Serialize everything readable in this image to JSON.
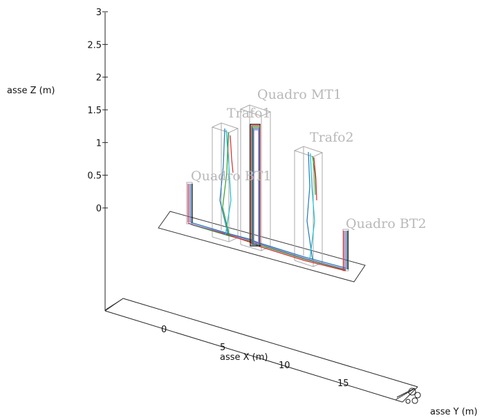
{
  "chart_data": {
    "type": "3d-line",
    "zlabel": "asse Z (m)",
    "xlabel": "asse X (m)",
    "ylabel": "asse Y (m)",
    "z_ticks": [
      "3",
      "2.5",
      "2",
      "1.5",
      "1",
      "0.5",
      "0"
    ],
    "x_ticks": [
      "0",
      "5",
      "10",
      "15"
    ],
    "zlim": [
      0,
      3
    ],
    "xlim": [
      0,
      18
    ],
    "components": [
      {
        "name": "Quadro BT1",
        "x": 1.2,
        "height": 0.4
      },
      {
        "name": "Trafo1",
        "x": 4.6,
        "height": 1.25
      },
      {
        "name": "Quadro MT1",
        "x": 7.2,
        "height": 1.4
      },
      {
        "name": "Trafo2",
        "x": 11.4,
        "height": 0.9
      },
      {
        "name": "Quadro BT2",
        "x": 16.0,
        "height": 0.35
      }
    ],
    "conductor_colors": [
      "#1f77b4",
      "#2ca02c",
      "#d62728",
      "#9467bd",
      "#17becf",
      "#000000"
    ]
  }
}
